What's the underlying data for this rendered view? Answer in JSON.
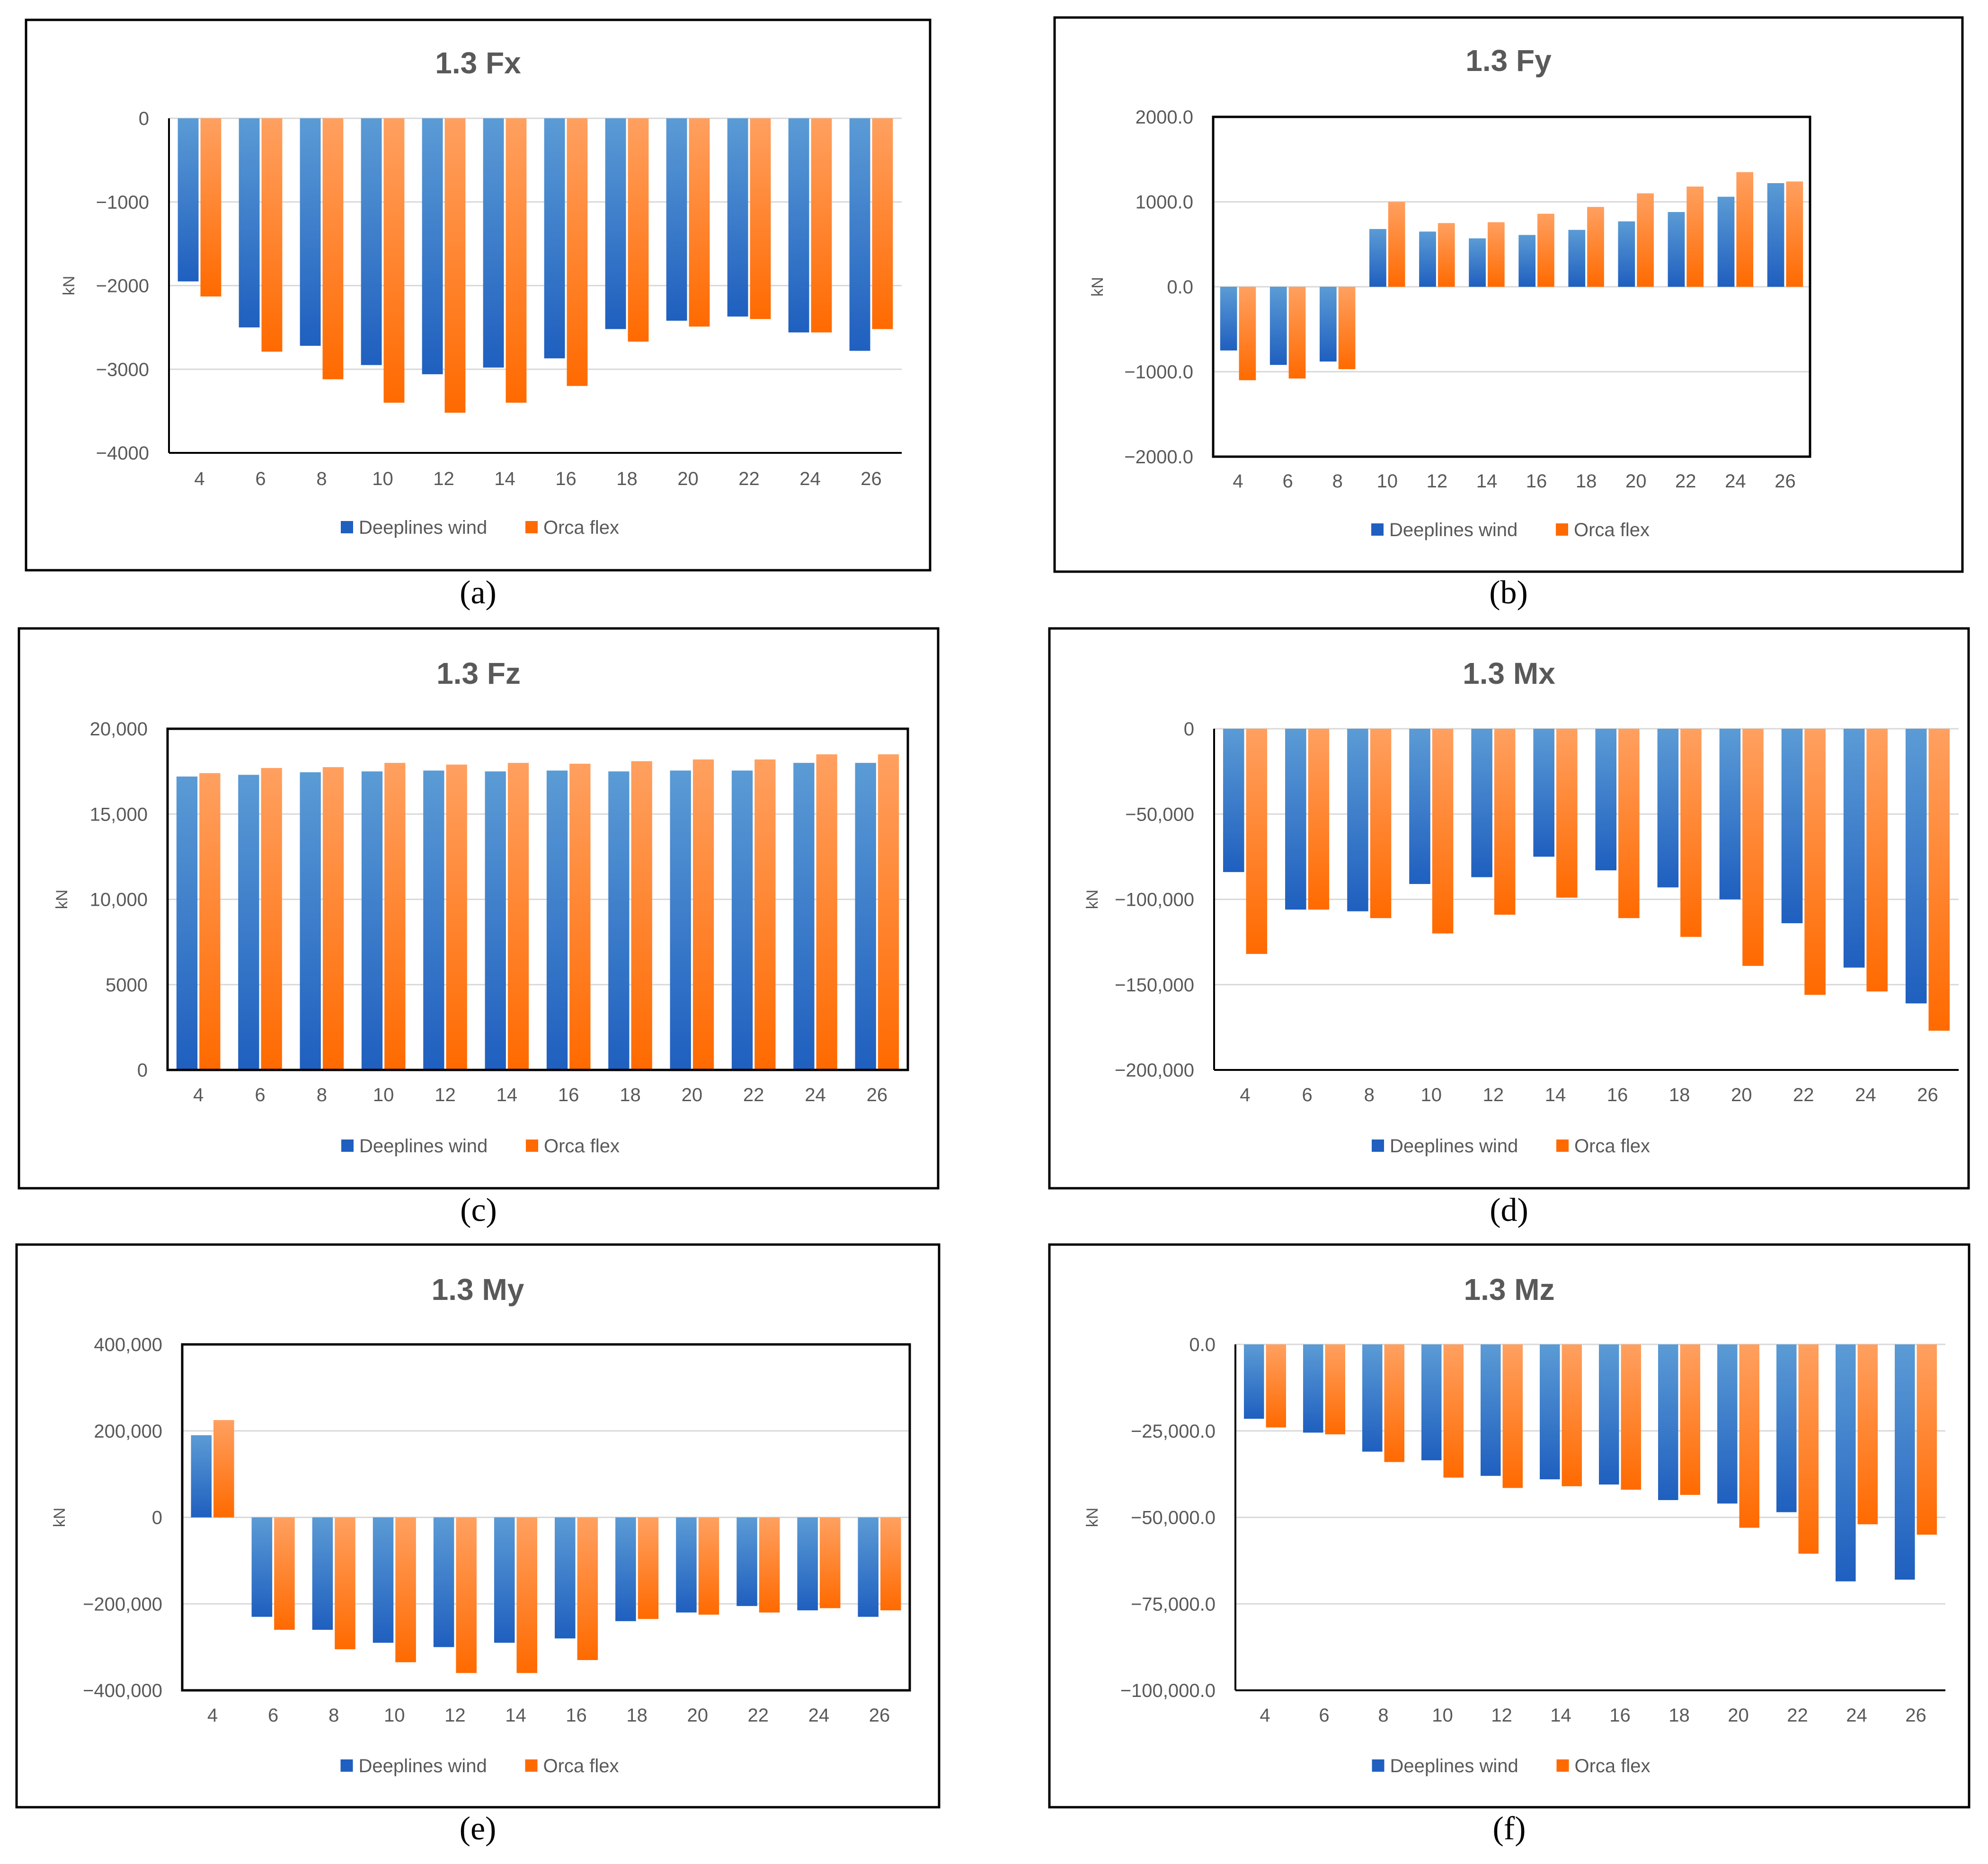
{
  "colors": {
    "deeplines_top": "#5b9bd5",
    "deeplines_bottom": "#1f5fbf",
    "orca_top": "#ffa060",
    "orca_bottom": "#ff6a00",
    "grid": "#d9d9d9",
    "text": "#595959",
    "frame": "#000000"
  },
  "legend": [
    "Deeplines wind",
    "Orca flex"
  ],
  "chart_data": [
    {
      "type": "bar",
      "panel_label": "(a)",
      "title": "1.3 Fx",
      "ylabel": "kN",
      "xlabel": "",
      "categories": [
        "4",
        "6",
        "8",
        "10",
        "12",
        "14",
        "16",
        "18",
        "20",
        "22",
        "24",
        "26"
      ],
      "ylim": [
        -4000,
        0
      ],
      "yticks": [
        0,
        -1000,
        -2000,
        -3000,
        -4000
      ],
      "ytick_labels": [
        "0",
        "−1000",
        "−2000",
        "−3000",
        "−4000"
      ],
      "grid": true,
      "legend_position": "bottom",
      "series": [
        {
          "name": "Deeplines wind",
          "values": [
            -1950,
            -2500,
            -2720,
            -2950,
            -3060,
            -2980,
            -2870,
            -2520,
            -2420,
            -2370,
            -2560,
            -2780
          ]
        },
        {
          "name": "Orca flex",
          "values": [
            -2130,
            -2790,
            -3120,
            -3400,
            -3520,
            -3400,
            -3200,
            -2670,
            -2490,
            -2400,
            -2560,
            -2520
          ]
        }
      ]
    },
    {
      "type": "bar",
      "panel_label": "(b)",
      "title": "1.3 Fy",
      "ylabel": "kN",
      "xlabel": "",
      "categories": [
        "4",
        "6",
        "8",
        "10",
        "12",
        "14",
        "16",
        "18",
        "20",
        "22",
        "24",
        "26"
      ],
      "ylim": [
        -2000,
        2000
      ],
      "yticks": [
        2000,
        1000,
        0,
        -1000,
        -2000
      ],
      "ytick_labels": [
        "2000.0",
        "1000.0",
        "0.0",
        "−1000.0",
        "−2000.0"
      ],
      "grid": true,
      "legend_position": "bottom",
      "series": [
        {
          "name": "Deeplines wind",
          "values": [
            -750,
            -920,
            -880,
            680,
            650,
            570,
            610,
            670,
            770,
            880,
            1060,
            1220
          ]
        },
        {
          "name": "Orca flex",
          "values": [
            -1100,
            -1080,
            -970,
            1000,
            750,
            760,
            860,
            940,
            1100,
            1180,
            1350,
            1240
          ]
        }
      ]
    },
    {
      "type": "bar",
      "panel_label": "(c)",
      "title": "1.3 Fz",
      "ylabel": "kN",
      "xlabel": "",
      "categories": [
        "4",
        "6",
        "8",
        "10",
        "12",
        "14",
        "16",
        "18",
        "20",
        "22",
        "24",
        "26"
      ],
      "ylim": [
        0,
        20000
      ],
      "yticks": [
        20000,
        15000,
        10000,
        5000,
        0
      ],
      "ytick_labels": [
        "20,000",
        "15,000",
        "10,000",
        "5000",
        "0"
      ],
      "grid": true,
      "legend_position": "bottom",
      "series": [
        {
          "name": "Deeplines wind",
          "values": [
            17200,
            17300,
            17450,
            17500,
            17550,
            17500,
            17550,
            17500,
            17550,
            17550,
            18000,
            18000
          ]
        },
        {
          "name": "Orca flex",
          "values": [
            17400,
            17700,
            17750,
            18000,
            17900,
            18000,
            17950,
            18100,
            18200,
            18200,
            18500,
            18500
          ]
        }
      ]
    },
    {
      "type": "bar",
      "panel_label": "(d)",
      "title": "1.3 Mx",
      "ylabel": "kN",
      "xlabel": "",
      "categories": [
        "4",
        "6",
        "8",
        "10",
        "12",
        "14",
        "16",
        "18",
        "20",
        "22",
        "24",
        "26"
      ],
      "ylim": [
        -200000,
        0
      ],
      "yticks": [
        0,
        -50000,
        -100000,
        -150000,
        -200000
      ],
      "ytick_labels": [
        "0",
        "−50,000",
        "−100,000",
        "−150,000",
        "−200,000"
      ],
      "grid": true,
      "legend_position": "bottom",
      "series": [
        {
          "name": "Deeplines wind",
          "values": [
            -84000,
            -106000,
            -107000,
            -91000,
            -87000,
            -75000,
            -83000,
            -93000,
            -100000,
            -114000,
            -140000,
            -161000
          ]
        },
        {
          "name": "Orca flex",
          "values": [
            -132000,
            -106000,
            -111000,
            -120000,
            -109000,
            -99000,
            -111000,
            -122000,
            -139000,
            -156000,
            -154000,
            -177000
          ]
        }
      ]
    },
    {
      "type": "bar",
      "panel_label": "(e)",
      "title": "1.3 My",
      "ylabel": "kN",
      "xlabel": "",
      "categories": [
        "4",
        "6",
        "8",
        "10",
        "12",
        "14",
        "16",
        "18",
        "20",
        "22",
        "24",
        "26"
      ],
      "ylim": [
        -400000,
        400000
      ],
      "yticks": [
        400000,
        200000,
        0,
        -200000,
        -400000
      ],
      "ytick_labels": [
        "400,000",
        "200,000",
        "0",
        "−200,000",
        "−400,000"
      ],
      "grid": true,
      "legend_position": "bottom",
      "series": [
        {
          "name": "Deeplines wind",
          "values": [
            190000,
            -230000,
            -260000,
            -290000,
            -300000,
            -290000,
            -280000,
            -240000,
            -220000,
            -205000,
            -215000,
            -230000
          ]
        },
        {
          "name": "Orca flex",
          "values": [
            225000,
            -260000,
            -305000,
            -335000,
            -360000,
            -360000,
            -330000,
            -235000,
            -225000,
            -220000,
            -210000,
            -215000
          ]
        }
      ]
    },
    {
      "type": "bar",
      "panel_label": "(f)",
      "title": "1.3 Mz",
      "ylabel": "kN",
      "xlabel": "",
      "categories": [
        "4",
        "6",
        "8",
        "10",
        "12",
        "14",
        "16",
        "18",
        "20",
        "22",
        "24",
        "26"
      ],
      "ylim": [
        -100000,
        0
      ],
      "yticks": [
        0,
        -25000,
        -50000,
        -75000,
        -100000
      ],
      "ytick_labels": [
        "0.0",
        "−25,000.0",
        "−50,000.0",
        "−75,000.0",
        "−100,000.0"
      ],
      "grid": true,
      "legend_position": "bottom",
      "series": [
        {
          "name": "Deeplines wind",
          "values": [
            -21500,
            -25500,
            -31000,
            -33500,
            -38000,
            -39000,
            -40500,
            -45000,
            -46000,
            -48500,
            -68500,
            -68000
          ]
        },
        {
          "name": "Orca flex",
          "values": [
            -24000,
            -26000,
            -34000,
            -38500,
            -41500,
            -41000,
            -42000,
            -43500,
            -53000,
            -60500,
            -52000,
            -55000
          ]
        }
      ]
    }
  ]
}
